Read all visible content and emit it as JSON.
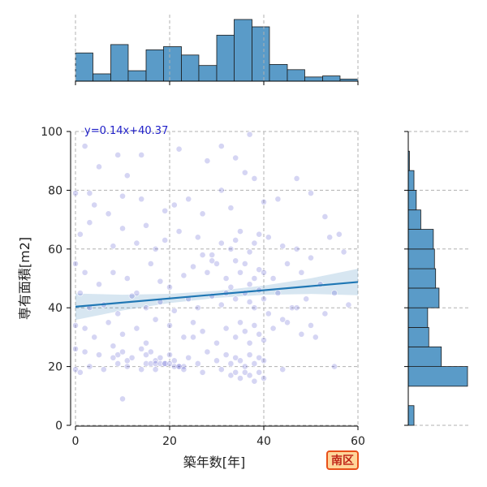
{
  "chart_data": {
    "type": "scatter",
    "title": "",
    "xlabel": "築年数[年]",
    "ylabel": "専有面積[m2]",
    "xlim": [
      0,
      60
    ],
    "ylim": [
      0,
      100
    ],
    "x_ticks": [
      0,
      20,
      40,
      60
    ],
    "y_ticks": [
      0,
      20,
      40,
      60,
      80,
      100
    ],
    "grid": true,
    "colors": {
      "points": "#3f3fc8",
      "regression_line": "#1f77b4",
      "confidence_band": "#1f77b4",
      "histogram_bars": "#5a9bc8",
      "equation_text": "#2020c8"
    },
    "regression": {
      "equation_text": "y=0.14x+40.37",
      "slope": 0.14,
      "intercept": 40.37
    },
    "points": [
      [
        2,
        95
      ],
      [
        5,
        88
      ],
      [
        9,
        92
      ],
      [
        14,
        92
      ],
      [
        22,
        94
      ],
      [
        31,
        95
      ],
      [
        37,
        99
      ],
      [
        34,
        91
      ],
      [
        28,
        90
      ],
      [
        11,
        85
      ],
      [
        0,
        79
      ],
      [
        3,
        79
      ],
      [
        4,
        75
      ],
      [
        7,
        72
      ],
      [
        10,
        78
      ],
      [
        14,
        77
      ],
      [
        19,
        73
      ],
      [
        21,
        75
      ],
      [
        24,
        77
      ],
      [
        27,
        72
      ],
      [
        31,
        80
      ],
      [
        33,
        74
      ],
      [
        36,
        86
      ],
      [
        38,
        84
      ],
      [
        40,
        76
      ],
      [
        43,
        77
      ],
      [
        47,
        84
      ],
      [
        50,
        79
      ],
      [
        53,
        71
      ],
      [
        56,
        65
      ],
      [
        1,
        65
      ],
      [
        3,
        69
      ],
      [
        8,
        61
      ],
      [
        10,
        67
      ],
      [
        13,
        62
      ],
      [
        15,
        68
      ],
      [
        17,
        60
      ],
      [
        19,
        63
      ],
      [
        22,
        66
      ],
      [
        26,
        64
      ],
      [
        29,
        58
      ],
      [
        31,
        62
      ],
      [
        33,
        60
      ],
      [
        34,
        63
      ],
      [
        35,
        66
      ],
      [
        37,
        59
      ],
      [
        38,
        62
      ],
      [
        39,
        65
      ],
      [
        41,
        64
      ],
      [
        44,
        61
      ],
      [
        47,
        60
      ],
      [
        50,
        57
      ],
      [
        54,
        64
      ],
      [
        57,
        59
      ],
      [
        0,
        55
      ],
      [
        2,
        52
      ],
      [
        5,
        48
      ],
      [
        8,
        52
      ],
      [
        11,
        50
      ],
      [
        13,
        45
      ],
      [
        16,
        55
      ],
      [
        18,
        49
      ],
      [
        20,
        47
      ],
      [
        23,
        51
      ],
      [
        25,
        54
      ],
      [
        28,
        52
      ],
      [
        30,
        55
      ],
      [
        32,
        50
      ],
      [
        34,
        56
      ],
      [
        35,
        52
      ],
      [
        36,
        55
      ],
      [
        37,
        48
      ],
      [
        38,
        50
      ],
      [
        39,
        53
      ],
      [
        40,
        52
      ],
      [
        42,
        50
      ],
      [
        45,
        55
      ],
      [
        48,
        52
      ],
      [
        52,
        48
      ],
      [
        55,
        45
      ],
      [
        1,
        45
      ],
      [
        3,
        40
      ],
      [
        6,
        41
      ],
      [
        9,
        38
      ],
      [
        12,
        44
      ],
      [
        15,
        40
      ],
      [
        18,
        42
      ],
      [
        21,
        39
      ],
      [
        24,
        43
      ],
      [
        26,
        40
      ],
      [
        29,
        44
      ],
      [
        31,
        41
      ],
      [
        32,
        45
      ],
      [
        33,
        47
      ],
      [
        34,
        43
      ],
      [
        36,
        45
      ],
      [
        37,
        42
      ],
      [
        38,
        40
      ],
      [
        39,
        46
      ],
      [
        40,
        43
      ],
      [
        43,
        45
      ],
      [
        46,
        40
      ],
      [
        49,
        43
      ],
      [
        53,
        38
      ],
      [
        58,
        41
      ],
      [
        0,
        34
      ],
      [
        2,
        33
      ],
      [
        4,
        30
      ],
      [
        7,
        35
      ],
      [
        10,
        31
      ],
      [
        13,
        33
      ],
      [
        15,
        28
      ],
      [
        17,
        36
      ],
      [
        20,
        34
      ],
      [
        23,
        30
      ],
      [
        25,
        35
      ],
      [
        27,
        32
      ],
      [
        30,
        28
      ],
      [
        32,
        33
      ],
      [
        34,
        30
      ],
      [
        35,
        35
      ],
      [
        36,
        32
      ],
      [
        37,
        28
      ],
      [
        38,
        34
      ],
      [
        39,
        31
      ],
      [
        40,
        29
      ],
      [
        42,
        33
      ],
      [
        45,
        35
      ],
      [
        48,
        31
      ],
      [
        51,
        30
      ],
      [
        0,
        26
      ],
      [
        2,
        25
      ],
      [
        5,
        24
      ],
      [
        8,
        27
      ],
      [
        9,
        24
      ],
      [
        10,
        25
      ],
      [
        11,
        22
      ],
      [
        12,
        23
      ],
      [
        14,
        26
      ],
      [
        15,
        24
      ],
      [
        16,
        25
      ],
      [
        17,
        22
      ],
      [
        18,
        23
      ],
      [
        19,
        21
      ],
      [
        20,
        24
      ],
      [
        21,
        22
      ],
      [
        22,
        20
      ],
      [
        24,
        23
      ],
      [
        26,
        21
      ],
      [
        28,
        25
      ],
      [
        30,
        22
      ],
      [
        32,
        24
      ],
      [
        33,
        21
      ],
      [
        34,
        23
      ],
      [
        35,
        22
      ],
      [
        36,
        20
      ],
      [
        37,
        24
      ],
      [
        38,
        21
      ],
      [
        39,
        23
      ],
      [
        40,
        22
      ],
      [
        15,
        21
      ],
      [
        16,
        21
      ],
      [
        17,
        21
      ],
      [
        18,
        21
      ],
      [
        19,
        21
      ],
      [
        20,
        21
      ],
      [
        21,
        20
      ],
      [
        22,
        20
      ],
      [
        23,
        20
      ],
      [
        0,
        19
      ],
      [
        1,
        18
      ],
      [
        3,
        20
      ],
      [
        6,
        19
      ],
      [
        11,
        20
      ],
      [
        14,
        19
      ],
      [
        17,
        19
      ],
      [
        23,
        19
      ],
      [
        27,
        18
      ],
      [
        31,
        19
      ],
      [
        33,
        17
      ],
      [
        34,
        18
      ],
      [
        35,
        16
      ],
      [
        36,
        18
      ],
      [
        37,
        17
      ],
      [
        38,
        15
      ],
      [
        39,
        18
      ],
      [
        40,
        16
      ],
      [
        44,
        19
      ],
      [
        55,
        20
      ],
      [
        10,
        9
      ],
      [
        9,
        21
      ],
      [
        8,
        23
      ],
      [
        50,
        34
      ],
      [
        47,
        40
      ],
      [
        44,
        36
      ],
      [
        41,
        38
      ],
      [
        25,
        30
      ],
      [
        27,
        58
      ],
      [
        29,
        56
      ]
    ]
  },
  "marginal_top": {
    "bin_edges": [
      0,
      3.7,
      7.5,
      11.2,
      15,
      18.7,
      22.5,
      26.2,
      30,
      33.7,
      37.5,
      41.2,
      45,
      48.7,
      52.5,
      56.2,
      60
    ],
    "counts": [
      27,
      7,
      35,
      10,
      30,
      33,
      25,
      15,
      44,
      59,
      52,
      16,
      11,
      4,
      5,
      2
    ]
  },
  "marginal_right": {
    "bin_edges": [
      0,
      6.7,
      13.3,
      20,
      26.7,
      33.3,
      40,
      46.7,
      53.3,
      60,
      66.7,
      73.3,
      80,
      86.7,
      93.3,
      100
    ],
    "counts": [
      5,
      0,
      52,
      29,
      18,
      17,
      27,
      24,
      23,
      22,
      11,
      7,
      5,
      1,
      0
    ]
  },
  "badge": {
    "label": "南区"
  }
}
